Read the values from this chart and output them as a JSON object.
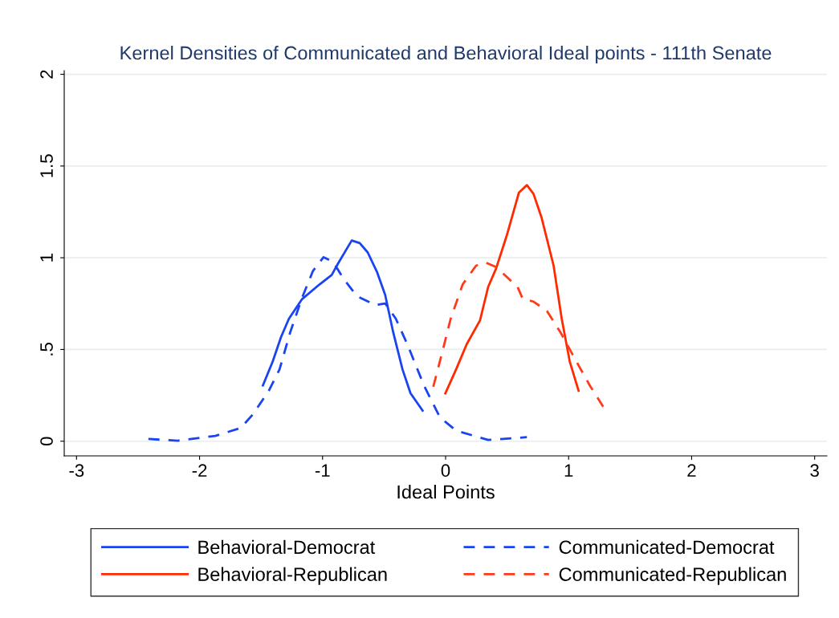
{
  "chart_data": {
    "type": "line",
    "title": "Kernel Densities of Communicated and Behavioral Ideal points - 111th Senate",
    "xlabel": "Ideal Points",
    "xlim": [
      -3.1,
      3.1
    ],
    "xticks": [
      -3,
      -2,
      -1,
      0,
      1,
      2,
      3
    ],
    "ylim": [
      -0.08,
      2.02
    ],
    "yticks": [
      0,
      {
        "value": 0.5,
        "label": ".5"
      },
      1,
      1.5,
      2
    ],
    "grid": "y",
    "legend": "bottom",
    "series": [
      {
        "name": "Behavioral-Democrat",
        "color": "#1a44f0",
        "line_style": "solid",
        "x": [
          -1.485,
          -1.405,
          -1.339,
          -1.274,
          -1.166,
          -1.024,
          -0.926,
          -0.872,
          -0.763,
          -0.698,
          -0.633,
          -0.556,
          -0.491,
          -0.426,
          -0.35,
          -0.285,
          -0.187
        ],
        "values": [
          0.304,
          0.435,
          0.565,
          0.667,
          0.775,
          0.855,
          0.906,
          0.971,
          1.094,
          1.08,
          1.029,
          0.92,
          0.797,
          0.594,
          0.391,
          0.261,
          0.167
        ]
      },
      {
        "name": "Behavioral-Republican",
        "color": "#ff2a00",
        "line_style": "solid",
        "x": [
          -0.002,
          0.085,
          0.172,
          0.28,
          0.346,
          0.411,
          0.498,
          0.596,
          0.661,
          0.715,
          0.781,
          0.878,
          0.944,
          1.009,
          1.081
        ],
        "values": [
          0.261,
          0.391,
          0.529,
          0.659,
          0.841,
          0.942,
          1.123,
          1.355,
          1.396,
          1.348,
          1.217,
          0.957,
          0.667,
          0.435,
          0.275
        ]
      },
      {
        "name": "Communicated-Democrat",
        "color": "#1a44f0",
        "line_style": "dashed",
        "x": [
          -2.416,
          -2.177,
          -1.872,
          -1.665,
          -1.568,
          -1.437,
          -1.35,
          -1.263,
          -1.166,
          -1.078,
          -0.992,
          -0.915,
          -0.828,
          -0.72,
          -0.567,
          -0.491,
          -0.404,
          -0.307,
          -0.176,
          -0.046,
          0.085,
          0.346,
          0.661
        ],
        "values": [
          0.012,
          0.003,
          0.029,
          0.072,
          0.145,
          0.275,
          0.391,
          0.594,
          0.783,
          0.928,
          1.003,
          0.978,
          0.884,
          0.79,
          0.742,
          0.751,
          0.667,
          0.522,
          0.304,
          0.13,
          0.058,
          0.007,
          0.022
        ]
      },
      {
        "name": "Communicated-Republican",
        "color": "#ff3a1a",
        "line_style": "dashed",
        "x": [
          -0.1,
          -0.024,
          0.041,
          0.139,
          0.248,
          0.324,
          0.411,
          0.585,
          0.628,
          0.715,
          0.824,
          0.933,
          1.063,
          1.172,
          1.281
        ],
        "values": [
          0.297,
          0.493,
          0.667,
          0.855,
          0.957,
          0.974,
          0.949,
          0.841,
          0.775,
          0.761,
          0.71,
          0.594,
          0.435,
          0.304,
          0.188
        ]
      }
    ]
  }
}
